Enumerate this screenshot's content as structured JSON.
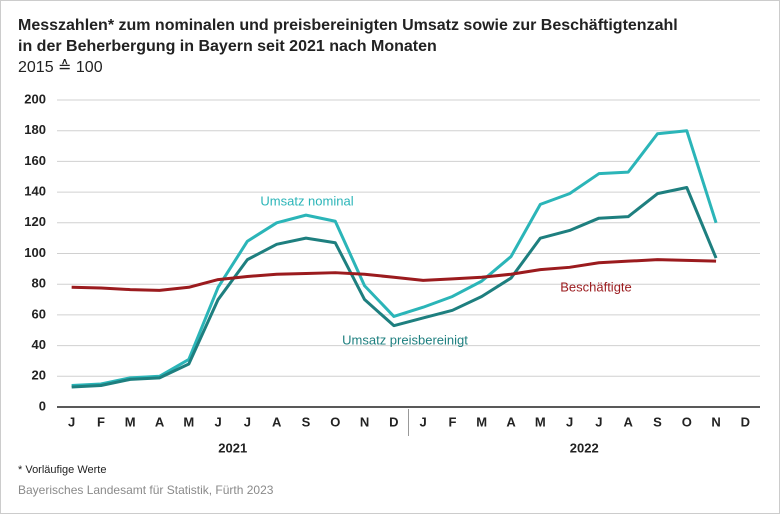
{
  "chart_data": {
    "type": "line",
    "title": "Messzahlen* zum nominalen und preisbereinigten Umsatz sowie zur Beschäftigtenzahl",
    "title_line2": "in der Beherbergung in Bayern seit 2021 nach Monaten",
    "subtitle": "2015 ≙ 100",
    "categories": [
      "J",
      "F",
      "M",
      "A",
      "M",
      "J",
      "J",
      "A",
      "S",
      "O",
      "N",
      "D",
      "J",
      "F",
      "M",
      "A",
      "M",
      "J",
      "J",
      "A",
      "S",
      "O",
      "N",
      "D"
    ],
    "year_labels": [
      "2021",
      "2022"
    ],
    "series": [
      {
        "name": "Umsatz nominal",
        "color": "#2bb5b8",
        "values": [
          14,
          15,
          19,
          20,
          31,
          78,
          108,
          120,
          125,
          121,
          79,
          59,
          65,
          72,
          82,
          98,
          132,
          139,
          152,
          153,
          178,
          180,
          120,
          null
        ]
      },
      {
        "name": "Umsatz preisbereinigt",
        "color": "#1e7f7f",
        "values": [
          13,
          14,
          18,
          19,
          28,
          70,
          96,
          106,
          110,
          107,
          70,
          53,
          58,
          63,
          72,
          84,
          110,
          115,
          123,
          124,
          139,
          143,
          97,
          null
        ]
      },
      {
        "name": "Beschäftigte",
        "color": "#9b1b1e",
        "values": [
          78,
          77.5,
          76.5,
          76,
          78,
          83,
          85,
          86.5,
          87,
          87.5,
          86.5,
          84.5,
          82.5,
          83.5,
          84.5,
          86.5,
          89.5,
          91,
          94,
          95,
          96,
          95.5,
          95,
          null
        ]
      }
    ],
    "ylim": [
      0,
      200
    ],
    "yticks": [
      0,
      20,
      40,
      60,
      80,
      100,
      120,
      140,
      160,
      180,
      200
    ],
    "grid": true,
    "footnote": "* Vorläufige Werte",
    "source": "Bayerisches Landesamt für Statistik, Fürth 2023"
  }
}
